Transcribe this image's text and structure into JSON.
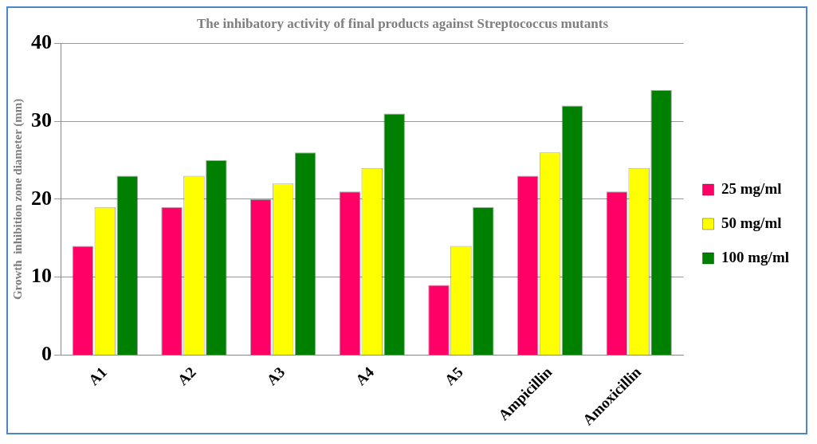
{
  "chart_data": {
    "type": "bar",
    "title": "The inhibatory activity of final products against Streptococcus mutants",
    "ylabel": "Growth  inhibition zone diameter (mm)",
    "categories": [
      "A1",
      "A2",
      "A3",
      "A4",
      "A5",
      "Ampicillin",
      "Amoxicillin"
    ],
    "series": [
      {
        "name": "25 mg/ml",
        "color": "#ff0066",
        "values": [
          14,
          19,
          20,
          21,
          9,
          23,
          21
        ]
      },
      {
        "name": "50 mg/ml",
        "color": "#ffff00",
        "values": [
          19,
          23,
          22,
          24,
          14,
          26,
          24
        ]
      },
      {
        "name": "100 mg/ml",
        "color": "#008000",
        "values": [
          23,
          25,
          26,
          31,
          19,
          32,
          34
        ]
      }
    ],
    "ylim": [
      0,
      40
    ],
    "yticks": [
      0,
      10,
      20,
      30,
      40
    ],
    "grid": "y",
    "legend": "right"
  }
}
